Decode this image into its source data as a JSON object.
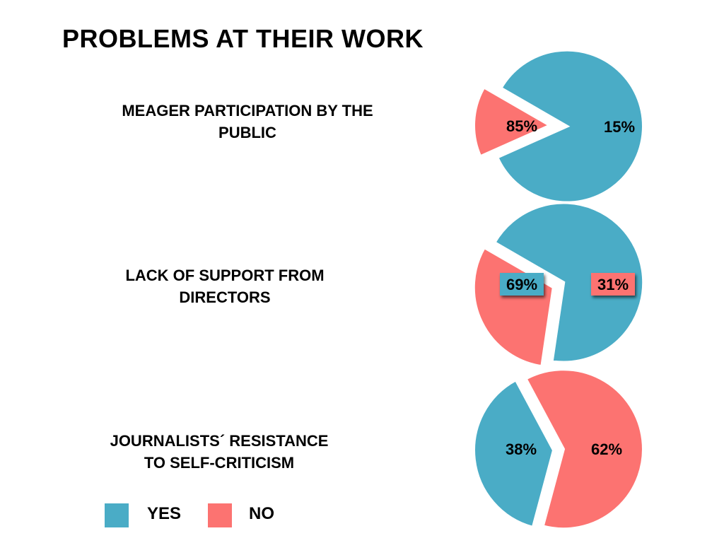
{
  "title": "PROBLEMS AT THEIR WORK",
  "colors": {
    "yes": "#4aacc6",
    "no": "#fc7371"
  },
  "legend": {
    "yes": "YES",
    "no": "NO"
  },
  "chart_data": [
    {
      "type": "pie",
      "title_lines": [
        "MEAGER PARTICIPATION BY THE",
        "PUBLIC"
      ],
      "categories": [
        "YES",
        "NO"
      ],
      "values": [
        85,
        15
      ],
      "labels": [
        "85%",
        "15%"
      ]
    },
    {
      "type": "pie",
      "title_lines": [
        "LACK OF SUPPORT FROM",
        "DIRECTORS"
      ],
      "categories": [
        "YES",
        "NO"
      ],
      "values": [
        69,
        31
      ],
      "labels": [
        "69%",
        "31%"
      ]
    },
    {
      "type": "pie",
      "title_lines": [
        "JOURNALISTS´ RESISTANCE",
        "TO SELF-CRITICISM"
      ],
      "categories": [
        "YES",
        "NO"
      ],
      "values": [
        38,
        62
      ],
      "labels": [
        "38%",
        "62%"
      ]
    }
  ]
}
